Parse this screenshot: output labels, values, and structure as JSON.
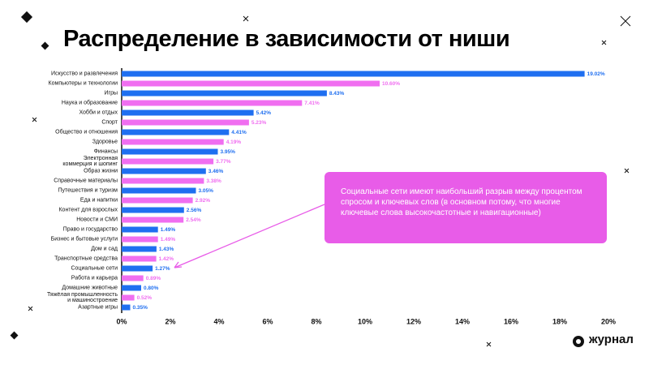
{
  "chart_data": {
    "type": "barh",
    "title": "Распределение в зависимости от ниши",
    "categories": [
      "Искусство и развлечения",
      "Компьютеры и технологии",
      "Игры",
      "Наука и образование",
      "Хобби и отдых",
      "Спорт",
      "Общество и отношения",
      "Здоровье",
      "Финансы",
      "Электронная\nкоммерция и шопинг",
      "Образ жизни",
      "Справочные материалы",
      "Путешествия и туризм",
      "Еда и напитки",
      "Контент для взрослых",
      "Новости и СМИ",
      "Право и государство",
      "Бизнес и бытовые услуги",
      "Дом и сад",
      "Транспортные средства",
      "Социальные сети",
      "Работа и карьера",
      "Домашние животные",
      "Тяжёлая промышленность\nи машиностроение",
      "Азартные игры"
    ],
    "values": [
      19.02,
      10.6,
      8.43,
      7.41,
      5.42,
      5.23,
      4.41,
      4.19,
      3.95,
      3.77,
      3.46,
      3.38,
      3.05,
      2.92,
      2.56,
      2.54,
      1.49,
      1.49,
      1.43,
      1.42,
      1.27,
      0.89,
      0.8,
      0.52,
      0.35
    ],
    "value_labels": [
      "19.02%",
      "10.60%",
      "8.43%",
      "7.41%",
      "5.42%",
      "5.23%",
      "4.41%",
      "4.19%",
      "3.95%",
      "3.77%",
      "3.46%",
      "3.38%",
      "3.05%",
      "2.92%",
      "2.56%",
      "2.54%",
      "1.49%",
      "1.49%",
      "1.43%",
      "1.42%",
      "1.27%",
      "0.89%",
      "0.80%",
      "0.52%",
      "0.35%"
    ],
    "colors": [
      "#1f6ff0",
      "#f06ef0",
      "#1f6ff0",
      "#f06ef0",
      "#1f6ff0",
      "#f06ef0",
      "#1f6ff0",
      "#f06ef0",
      "#1f6ff0",
      "#f06ef0",
      "#1f6ff0",
      "#f06ef0",
      "#1f6ff0",
      "#f06ef0",
      "#1f6ff0",
      "#f06ef0",
      "#1f6ff0",
      "#f06ef0",
      "#1f6ff0",
      "#f06ef0",
      "#1f6ff0",
      "#f06ef0",
      "#1f6ff0",
      "#f06ef0",
      "#1f6ff0"
    ],
    "xlim": [
      0,
      20
    ],
    "xticks": [
      {
        "value": 0,
        "label": "0%"
      },
      {
        "value": 2,
        "label": "2%"
      },
      {
        "value": 4,
        "label": "4%"
      },
      {
        "value": 6,
        "label": "6%"
      },
      {
        "value": 8,
        "label": "8%"
      },
      {
        "value": 10,
        "label": "10%"
      },
      {
        "value": 12,
        "label": "12%"
      },
      {
        "value": 14,
        "label": "14%"
      },
      {
        "value": 16,
        "label": "16%"
      },
      {
        "value": 18,
        "label": "18%"
      },
      {
        "value": 20,
        "label": "20%"
      }
    ],
    "annotation": "Социальные сети имеют наибольший разрыв между процентом спросом и ключевых слов (в основном потому, что многие ключевые слова высокочастотные и навигационные)"
  },
  "footer": {
    "logo_text": "журнал"
  }
}
